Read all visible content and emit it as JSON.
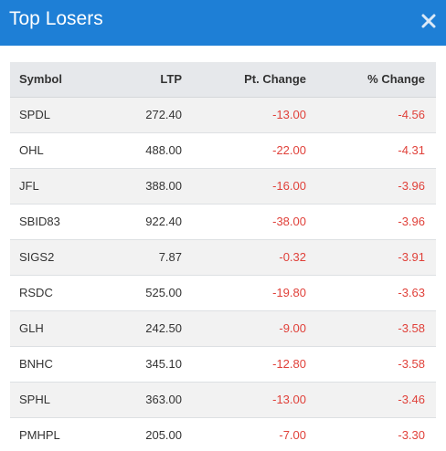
{
  "header": {
    "title": "Top Losers",
    "close_icon": "close-icon"
  },
  "colors": {
    "header_bg": "#1e7fd6",
    "negative": "#e0413a"
  },
  "table": {
    "columns": {
      "symbol": "Symbol",
      "ltp": "LTP",
      "pt_change": "Pt. Change",
      "pct_change": "% Change"
    },
    "rows": [
      {
        "symbol": "SPDL",
        "ltp": "272.40",
        "pt_change": "-13.00",
        "pct_change": "-4.56"
      },
      {
        "symbol": "OHL",
        "ltp": "488.00",
        "pt_change": "-22.00",
        "pct_change": "-4.31"
      },
      {
        "symbol": "JFL",
        "ltp": "388.00",
        "pt_change": "-16.00",
        "pct_change": "-3.96"
      },
      {
        "symbol": "SBID83",
        "ltp": "922.40",
        "pt_change": "-38.00",
        "pct_change": "-3.96"
      },
      {
        "symbol": "SIGS2",
        "ltp": "7.87",
        "pt_change": "-0.32",
        "pct_change": "-3.91"
      },
      {
        "symbol": "RSDC",
        "ltp": "525.00",
        "pt_change": "-19.80",
        "pct_change": "-3.63"
      },
      {
        "symbol": "GLH",
        "ltp": "242.50",
        "pt_change": "-9.00",
        "pct_change": "-3.58"
      },
      {
        "symbol": "BNHC",
        "ltp": "345.10",
        "pt_change": "-12.80",
        "pct_change": "-3.58"
      },
      {
        "symbol": "SPHL",
        "ltp": "363.00",
        "pt_change": "-13.00",
        "pct_change": "-3.46"
      },
      {
        "symbol": "PMHPL",
        "ltp": "205.00",
        "pt_change": "-7.00",
        "pct_change": "-3.30"
      }
    ]
  }
}
